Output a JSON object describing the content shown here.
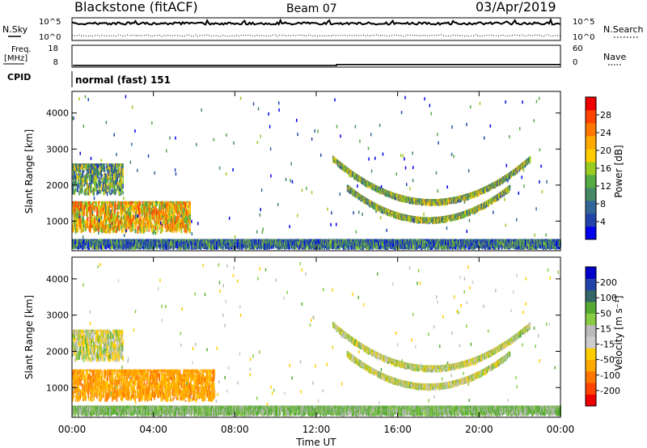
{
  "header": {
    "station": "Blackstone (fitACF)",
    "beam": "Beam 07",
    "date": "03/Apr/2019"
  },
  "summary": {
    "nsky_label": "N.Sky",
    "nsearch_label": "N.Search",
    "freq_label_1": "Freq.",
    "freq_label_2": "[MHz]",
    "nave_label": "Nave",
    "cpid_label": "CPID",
    "cpid_text": "normal (fast) 151",
    "n_ticks": {
      "left_top": "10^5",
      "left_bottom": "10^0",
      "right_top": "10^5",
      "right_bottom": "10^0"
    },
    "freq_ticks": [
      "18",
      "8"
    ],
    "nave_ticks": [
      "60",
      "0"
    ],
    "freq_mhz_before": 8.5,
    "freq_mhz_after": 9.0,
    "freq_switch_hour": 13.0
  },
  "chart_data": [
    {
      "type": "heatmap",
      "panel": "power",
      "ylabel": "Slant Range [km]",
      "xlabel": "",
      "xlim": [
        0,
        24
      ],
      "ylim": [
        180,
        4600
      ],
      "yticks": [
        1000,
        2000,
        3000,
        4000
      ],
      "colorbar": {
        "label": "Power [dB]",
        "range": [
          0,
          32
        ],
        "ticks": [
          4,
          8,
          12,
          16,
          20,
          24,
          28
        ],
        "colors": [
          "#0000ee",
          "#2244aa",
          "#336699",
          "#448866",
          "#55aa44",
          "#99cc22",
          "#ffcc00",
          "#ffaa00",
          "#ff7700",
          "#ff4400",
          "#ee0000"
        ]
      },
      "regions": [
        {
          "name": "E-region band",
          "start_hour": 0.0,
          "end_hour": 5.8,
          "range_km": [
            650,
            1550
          ],
          "power_db": 20
        },
        {
          "name": "F-region patch",
          "start_hour": 0.0,
          "end_hour": 2.5,
          "range_km": [
            1700,
            2600
          ],
          "power_db": 12
        },
        {
          "name": "Near-range clutter",
          "start_hour": 0.0,
          "end_hour": 24.0,
          "range_km": [
            200,
            500
          ],
          "power_db": 8
        },
        {
          "name": "Upper arc",
          "start_hour": 12.8,
          "end_hour": 22.5,
          "range_km": [
            1500,
            2700
          ],
          "power_db": 14
        },
        {
          "name": "Lower arc",
          "start_hour": 13.5,
          "end_hour": 21.5,
          "range_km": [
            1000,
            1900
          ],
          "power_db": 14
        }
      ]
    },
    {
      "type": "heatmap",
      "panel": "velocity",
      "ylabel": "Slant Range [km]",
      "xlabel": "Time UT",
      "xlim": [
        0,
        24
      ],
      "ylim": [
        180,
        4600
      ],
      "yticks": [
        1000,
        2000,
        3000,
        4000
      ],
      "xticks": [
        "00:00",
        "04:00",
        "08:00",
        "12:00",
        "16:00",
        "20:00",
        "00:00"
      ],
      "colorbar": {
        "label": "Velocity [m s⁻¹]",
        "ticks": [
          "200",
          "100",
          "50",
          "15",
          "-15",
          "-50",
          "-100",
          "-200"
        ],
        "colors": [
          "#0000cc",
          "#2244aa",
          "#336666",
          "#55aa33",
          "#88cc44",
          "#bbbbbb",
          "#cccccc",
          "#ffcc00",
          "#ffaa00",
          "#ff7700",
          "#ff4400",
          "#ee0000"
        ]
      },
      "regions": [
        {
          "name": "E-region band",
          "start_hour": 0.0,
          "end_hour": 7.0,
          "range_km": [
            600,
            1500
          ],
          "velocity_ms": -80
        },
        {
          "name": "F-region patch",
          "start_hour": 0.0,
          "end_hour": 2.5,
          "range_km": [
            1700,
            2600
          ],
          "velocity_ms": 0
        },
        {
          "name": "Near-range clutter",
          "start_hour": 0.0,
          "end_hour": 24.0,
          "range_km": [
            200,
            500
          ],
          "velocity_ms": 30
        },
        {
          "name": "Upper arc",
          "start_hour": 12.8,
          "end_hour": 22.5,
          "range_km": [
            1500,
            2700
          ],
          "velocity_ms": 0
        },
        {
          "name": "Lower arc",
          "start_hour": 13.5,
          "end_hour": 21.5,
          "range_km": [
            1000,
            1900
          ],
          "velocity_ms": 0
        }
      ]
    }
  ]
}
